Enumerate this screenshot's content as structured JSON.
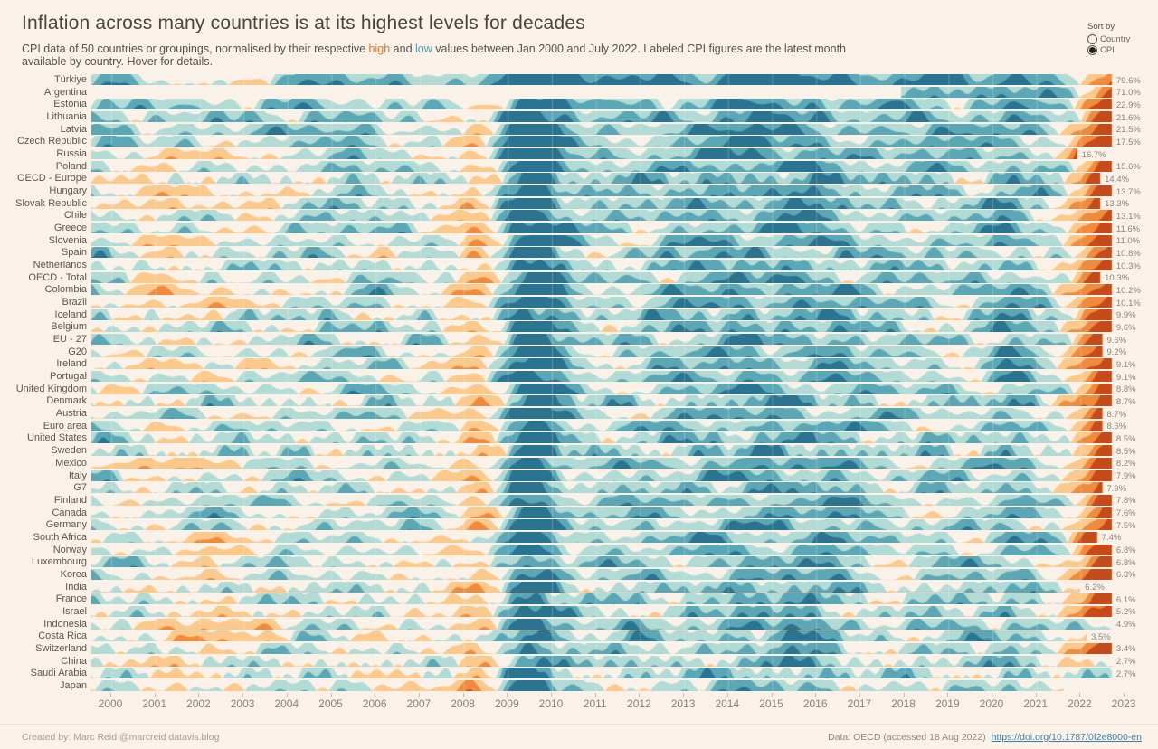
{
  "header": {
    "title": "Inflation across many countries is at its highest levels for decades",
    "subtitle": {
      "pre": "CPI data of 50 countries or groupings, normalised by their respective ",
      "high_word": "high",
      "mid": " and ",
      "low_word": "low",
      "post": " values between Jan 2000 and July 2022.  Labeled CPI figures are the latest month available by country. Hover for details."
    }
  },
  "sort_control": {
    "label": "Sort by",
    "options": [
      {
        "label": "Country",
        "selected": false
      },
      {
        "label": "CPI",
        "selected": true
      }
    ]
  },
  "chart_data": {
    "type": "horizon",
    "x_ticks": [
      2000,
      2001,
      2002,
      2003,
      2004,
      2005,
      2006,
      2007,
      2008,
      2009,
      2010,
      2011,
      2012,
      2013,
      2014,
      2015,
      2016,
      2017,
      2018,
      2019,
      2020,
      2021,
      2022,
      2023
    ],
    "x_range": [
      "Jan 2000",
      "Jul 2022"
    ],
    "legend": {
      "high_color_meaning": "CPI near country high",
      "low_color_meaning": "CPI near country low"
    },
    "palette": {
      "background": "#faf2e9",
      "teal": [
        "#b2dbd5",
        "#5ca7b6",
        "#2a7391"
      ],
      "orange": [
        "#fbc98b",
        "#f08b3e",
        "#c74a1b"
      ]
    },
    "rows": [
      {
        "country": "Türkiye",
        "value": "79.6%",
        "end_frac": 0.974,
        "end_hot": true,
        "early": 1.0,
        "base": 0.15,
        "start_frac": 0
      },
      {
        "country": "Argentina",
        "value": "71.0%",
        "end_frac": 0.974,
        "end_hot": true,
        "early": 0.0,
        "base": 0.2,
        "start_frac": 0.773
      },
      {
        "country": "Estonia",
        "value": "22.9%",
        "end_frac": 0.974,
        "end_hot": true,
        "early": 0.1,
        "base": 0.27,
        "start_frac": 0
      },
      {
        "country": "Lithuania",
        "value": "21.6%",
        "end_frac": 0.974,
        "end_hot": true,
        "early": 0.1,
        "base": 0.27,
        "start_frac": 0
      },
      {
        "country": "Latvia",
        "value": "21.5%",
        "end_frac": 0.974,
        "end_hot": true,
        "early": 0.1,
        "base": 0.27,
        "start_frac": 0
      },
      {
        "country": "Czech Republic",
        "value": "17.5%",
        "end_frac": 0.974,
        "end_hot": true,
        "early": 0.2,
        "base": 0.3,
        "start_frac": 0
      },
      {
        "country": "Russia",
        "value": "16.7%",
        "end_frac": 0.941,
        "end_hot": true,
        "early": 1.0,
        "base": 0.28,
        "start_frac": 0
      },
      {
        "country": "Poland",
        "value": "15.6%",
        "end_frac": 0.974,
        "end_hot": true,
        "early": 0.5,
        "base": 0.3,
        "start_frac": 0
      },
      {
        "country": "OECD - Europe",
        "value": "14.4%",
        "end_frac": 0.963,
        "end_hot": true,
        "early": 0.6,
        "base": 0.31,
        "start_frac": 0
      },
      {
        "country": "Hungary",
        "value": "13.7%",
        "end_frac": 0.974,
        "end_hot": true,
        "early": 1.0,
        "base": 0.3,
        "start_frac": 0
      },
      {
        "country": "Slovak Republic",
        "value": "13.3%",
        "end_frac": 0.963,
        "end_hot": true,
        "early": 1.0,
        "base": 0.3,
        "start_frac": 0
      },
      {
        "country": "Chile",
        "value": "13.1%",
        "end_frac": 0.974,
        "end_hot": true,
        "early": 0.3,
        "base": 0.32,
        "start_frac": 0
      },
      {
        "country": "Greece",
        "value": "11.6%",
        "end_frac": 0.974,
        "end_hot": true,
        "early": 0.3,
        "base": 0.33,
        "start_frac": 0
      },
      {
        "country": "Slovenia",
        "value": "11.0%",
        "end_frac": 0.974,
        "end_hot": true,
        "early": 0.8,
        "base": 0.32,
        "start_frac": 0
      },
      {
        "country": "Spain",
        "value": "10.8%",
        "end_frac": 0.974,
        "end_hot": true,
        "early": 0.3,
        "base": 0.33,
        "start_frac": 0
      },
      {
        "country": "Netherlands",
        "value": "10.3%",
        "end_frac": 0.974,
        "end_hot": true,
        "early": 0.2,
        "base": 0.33,
        "start_frac": 0
      },
      {
        "country": "OECD - Total",
        "value": "10.3%",
        "end_frac": 0.963,
        "end_hot": true,
        "early": 0.5,
        "base": 0.32,
        "start_frac": 0
      },
      {
        "country": "Colombia",
        "value": "10.2%",
        "end_frac": 0.974,
        "end_hot": true,
        "early": 0.9,
        "base": 0.31,
        "start_frac": 0
      },
      {
        "country": "Brazil",
        "value": "10.1%",
        "end_frac": 0.974,
        "end_hot": true,
        "early": 0.9,
        "base": 0.31,
        "start_frac": 0
      },
      {
        "country": "Iceland",
        "value": "9.9%",
        "end_frac": 0.974,
        "end_hot": true,
        "early": 0.4,
        "base": 0.32,
        "start_frac": 0
      },
      {
        "country": "Belgium",
        "value": "9.6%",
        "end_frac": 0.974,
        "end_hot": true,
        "early": 0.2,
        "base": 0.33,
        "start_frac": 0
      },
      {
        "country": "EU - 27",
        "value": "9.6%",
        "end_frac": 0.965,
        "end_hot": true,
        "early": 0.4,
        "base": 0.33,
        "start_frac": 0
      },
      {
        "country": "G20",
        "value": "9.2%",
        "end_frac": 0.965,
        "end_hot": true,
        "early": 0.3,
        "base": 0.33,
        "start_frac": 0
      },
      {
        "country": "Ireland",
        "value": "9.1%",
        "end_frac": 0.974,
        "end_hot": true,
        "early": 0.8,
        "base": 0.33,
        "start_frac": 0
      },
      {
        "country": "Portugal",
        "value": "9.1%",
        "end_frac": 0.974,
        "end_hot": true,
        "early": 0.4,
        "base": 0.33,
        "start_frac": 0
      },
      {
        "country": "United Kingdom",
        "value": "8.8%",
        "end_frac": 0.974,
        "end_hot": true,
        "early": 0.2,
        "base": 0.33,
        "start_frac": 0
      },
      {
        "country": "Denmark",
        "value": "8.7%",
        "end_frac": 0.974,
        "end_hot": true,
        "early": 0.2,
        "base": 0.34,
        "start_frac": 0
      },
      {
        "country": "Austria",
        "value": "8.7%",
        "end_frac": 0.965,
        "end_hot": true,
        "early": 0.2,
        "base": 0.34,
        "start_frac": 0
      },
      {
        "country": "Euro area",
        "value": "8.6%",
        "end_frac": 0.965,
        "end_hot": true,
        "early": 0.2,
        "base": 0.34,
        "start_frac": 0
      },
      {
        "country": "United States",
        "value": "8.5%",
        "end_frac": 0.974,
        "end_hot": true,
        "early": 0.2,
        "base": 0.33,
        "start_frac": 0
      },
      {
        "country": "Sweden",
        "value": "8.5%",
        "end_frac": 0.974,
        "end_hot": true,
        "early": 0.1,
        "base": 0.34,
        "start_frac": 0
      },
      {
        "country": "Mexico",
        "value": "8.2%",
        "end_frac": 0.974,
        "end_hot": true,
        "early": 0.9,
        "base": 0.32,
        "start_frac": 0
      },
      {
        "country": "Italy",
        "value": "7.9%",
        "end_frac": 0.974,
        "end_hot": true,
        "early": 0.2,
        "base": 0.34,
        "start_frac": 0
      },
      {
        "country": "G7",
        "value": "7.9%",
        "end_frac": 0.965,
        "end_hot": true,
        "early": 0.2,
        "base": 0.34,
        "start_frac": 0
      },
      {
        "country": "Finland",
        "value": "7.8%",
        "end_frac": 0.974,
        "end_hot": true,
        "early": 0.1,
        "base": 0.34,
        "start_frac": 0
      },
      {
        "country": "Canada",
        "value": "7.6%",
        "end_frac": 0.974,
        "end_hot": true,
        "early": 0.1,
        "base": 0.34,
        "start_frac": 0
      },
      {
        "country": "Germany",
        "value": "7.5%",
        "end_frac": 0.974,
        "end_hot": true,
        "early": 0.2,
        "base": 0.34,
        "start_frac": 0
      },
      {
        "country": "South Africa",
        "value": "7.4%",
        "end_frac": 0.96,
        "end_hot": true,
        "early": 0.7,
        "base": 0.33,
        "start_frac": 0
      },
      {
        "country": "Norway",
        "value": "6.8%",
        "end_frac": 0.974,
        "end_hot": true,
        "early": 0.5,
        "base": 0.35,
        "start_frac": 0
      },
      {
        "country": "Luxembourg",
        "value": "6.8%",
        "end_frac": 0.974,
        "end_hot": true,
        "early": 0.2,
        "base": 0.35,
        "start_frac": 0
      },
      {
        "country": "Korea",
        "value": "6.3%",
        "end_frac": 0.974,
        "end_hot": true,
        "early": 0.4,
        "base": 0.35,
        "start_frac": 0
      },
      {
        "country": "India",
        "value": "6.2%",
        "end_frac": 0.944,
        "end_hot": false,
        "early": 0.3,
        "base": 0.36,
        "start_frac": 0
      },
      {
        "country": "France",
        "value": "6.1%",
        "end_frac": 0.974,
        "end_hot": true,
        "early": 0.2,
        "base": 0.35,
        "start_frac": 0
      },
      {
        "country": "Israel",
        "value": "5.2%",
        "end_frac": 0.974,
        "end_hot": true,
        "early": 0.5,
        "base": 0.36,
        "start_frac": 0
      },
      {
        "country": "Indonesia",
        "value": "4.9%",
        "end_frac": 0.974,
        "end_hot": false,
        "early": 1.0,
        "base": 0.33,
        "start_frac": 0
      },
      {
        "country": "Costa Rica",
        "value": "3.5%",
        "end_frac": 0.95,
        "end_hot": false,
        "early": 0.9,
        "base": 0.34,
        "start_frac": 0
      },
      {
        "country": "Switzerland",
        "value": "3.4%",
        "end_frac": 0.974,
        "end_hot": true,
        "early": 0.2,
        "base": 0.37,
        "start_frac": 0
      },
      {
        "country": "China",
        "value": "2.7%",
        "end_frac": 0.974,
        "end_hot": false,
        "early": 0.4,
        "base": 0.37,
        "start_frac": 0
      },
      {
        "country": "Saudi Arabia",
        "value": "2.7%",
        "end_frac": 0.974,
        "end_hot": false,
        "early": 0.2,
        "base": 0.38,
        "start_frac": 0
      },
      {
        "country": "Japan",
        "value": null,
        "end_frac": 0.928,
        "end_hot": false,
        "early": 0.1,
        "base": 0.4,
        "start_frac": 0
      }
    ]
  },
  "footer": {
    "credit": "Created by: Marc Reid  @marcreid  datavis.blog",
    "source": "Data: OECD (accessed 18 Aug 2022)",
    "link": "https://doi.org/10.1787/0f2e8000-en"
  }
}
